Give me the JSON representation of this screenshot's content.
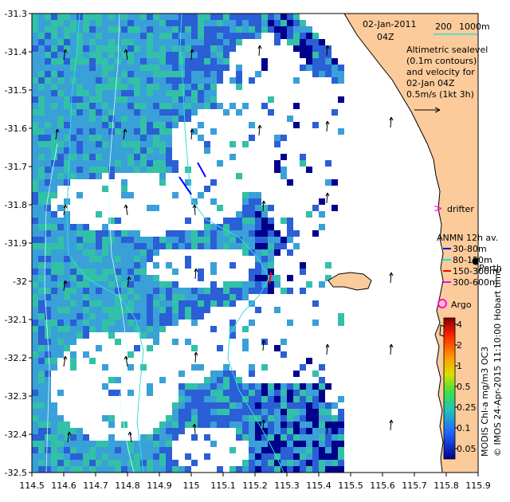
{
  "title": {
    "date": "02-Jan-2011",
    "time": "04Z"
  },
  "bathymetry_legend": {
    "contour_200": "200",
    "contour_1000": "1000m"
  },
  "description": {
    "line1": "Altimetric sealevel",
    "line2": "(0.1m contours)",
    "line3": "and velocity for",
    "line4": "02-Jan 04Z",
    "line5": "0.5m/s (1kt 3h)"
  },
  "drifter_label": "drifter",
  "anmn": {
    "title": "ANMN 12h av.",
    "depths": [
      "30-80m",
      "80-150m",
      "150-300m",
      "300-600m"
    ],
    "colors": [
      "#0000ff",
      "#00e5e5",
      "#ff0000",
      "#ff00ff"
    ]
  },
  "place_label": "Perth",
  "argo_label": "Argo",
  "credit": "© IMOS 24-Apr-2015 11:10:00 Hobart time",
  "colorbar": {
    "label": "MODIS Chl-a mg/m3 OC3",
    "ticks": [
      "4",
      "2",
      "1",
      "0.5",
      "0.25",
      "0.1",
      "0.05"
    ]
  },
  "axes": {
    "x_ticks": [
      "114.5",
      "114.6",
      "114.7",
      "114.8",
      "114.9",
      "115",
      "115.1",
      "115.2",
      "115.3",
      "115.4",
      "115.5",
      "115.6",
      "115.7",
      "115.8",
      "115.9"
    ],
    "y_ticks": [
      "-31.3",
      "-31.4",
      "-31.5",
      "-31.6",
      "-31.7",
      "-31.8",
      "-31.9",
      "-32",
      "-32.1",
      "-32.2",
      "-32.3",
      "-32.4",
      "-32.5"
    ],
    "x_range": [
      114.5,
      115.9
    ],
    "y_range": [
      -32.5,
      -31.3
    ]
  },
  "colors": {
    "land": "#fbcb9b",
    "ocean": "#ffffff",
    "chl_low": "#2a5fd6",
    "chl_mid": "#3aa0d8",
    "chl_teal": "#33c0a8",
    "chl_high": "#00008b",
    "contour": "#33dddd"
  }
}
